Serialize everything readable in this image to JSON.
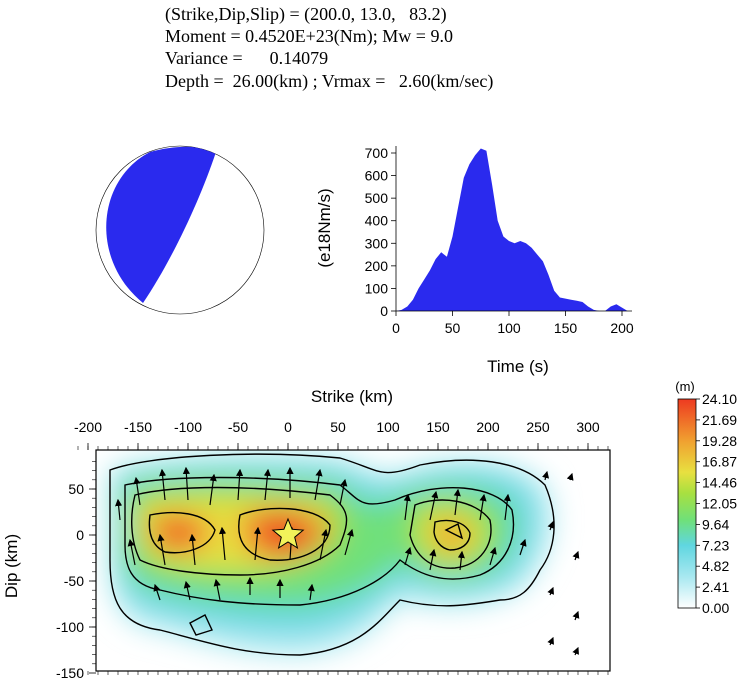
{
  "header": {
    "line1": "(Strike,Dip,Slip) = (200.0, 13.0,   83.2)",
    "line2": "Moment = 0.4520E+23(Nm); Mw = 9.0",
    "line3": "Variance =      0.14079",
    "line4": "Depth =  26.00(km) ; Vrmax =   2.60(km/sec)"
  },
  "colors": {
    "beachball": "#2a2aee",
    "stf_fill": "#2a2aee",
    "slip_scale": [
      "#ffffff",
      "#a8e8f0",
      "#60d6e0",
      "#6fe07a",
      "#a8e040",
      "#e8e040",
      "#f0a030",
      "#ee3a20"
    ],
    "hypocenter_star": "#f2f25a"
  },
  "chart_data": [
    {
      "type": "area",
      "xlabel": "Time (s)",
      "ylabel": "(e18Nm/s)",
      "xlim": [
        0,
        210
      ],
      "ylim": [
        0,
        750
      ],
      "xticks": [
        "0",
        "50",
        "100",
        "150",
        "200"
      ],
      "yticks": [
        "0",
        "100",
        "200",
        "300",
        "400",
        "500",
        "600",
        "700"
      ],
      "x": [
        0,
        5,
        10,
        15,
        20,
        25,
        30,
        35,
        40,
        45,
        50,
        55,
        60,
        65,
        70,
        75,
        80,
        85,
        90,
        95,
        100,
        105,
        110,
        115,
        120,
        125,
        130,
        135,
        140,
        145,
        150,
        155,
        160,
        165,
        170,
        175,
        180,
        185,
        190,
        195,
        200,
        205
      ],
      "y": [
        0,
        5,
        20,
        50,
        100,
        140,
        180,
        230,
        260,
        240,
        330,
        460,
        590,
        650,
        690,
        720,
        710,
        560,
        400,
        330,
        310,
        300,
        310,
        300,
        280,
        250,
        220,
        160,
        90,
        60,
        55,
        50,
        45,
        40,
        20,
        5,
        0,
        0,
        20,
        30,
        15,
        0
      ]
    },
    {
      "type": "heatmap",
      "xlabel": "Strike (km)",
      "ylabel": "Dip (km)",
      "xlim": [
        -215,
        340
      ],
      "ylim": [
        -150,
        90
      ],
      "xticks": [
        "-200",
        "-150",
        "-100",
        "-50",
        "0",
        "50",
        "100",
        "150",
        "200",
        "250",
        "300"
      ],
      "yticks": [
        "50",
        "0",
        "-50",
        "-100",
        "-150"
      ],
      "colorbar": {
        "unit": "(m)",
        "labels": [
          "24.10",
          "21.69",
          "19.28",
          "16.87",
          "14.46",
          "12.05",
          "9.64",
          "7.23",
          "4.82",
          "2.41",
          "0.00"
        ],
        "range": [
          0,
          24.1
        ]
      },
      "peaks": [
        {
          "x": 0,
          "y": 0,
          "slip": 24.1
        },
        {
          "x": -115,
          "y": 5,
          "slip": 20.5
        },
        {
          "x": 175,
          "y": 5,
          "slip": 17.0
        }
      ],
      "hypocenter": {
        "x": 0,
        "y": 0
      }
    }
  ]
}
